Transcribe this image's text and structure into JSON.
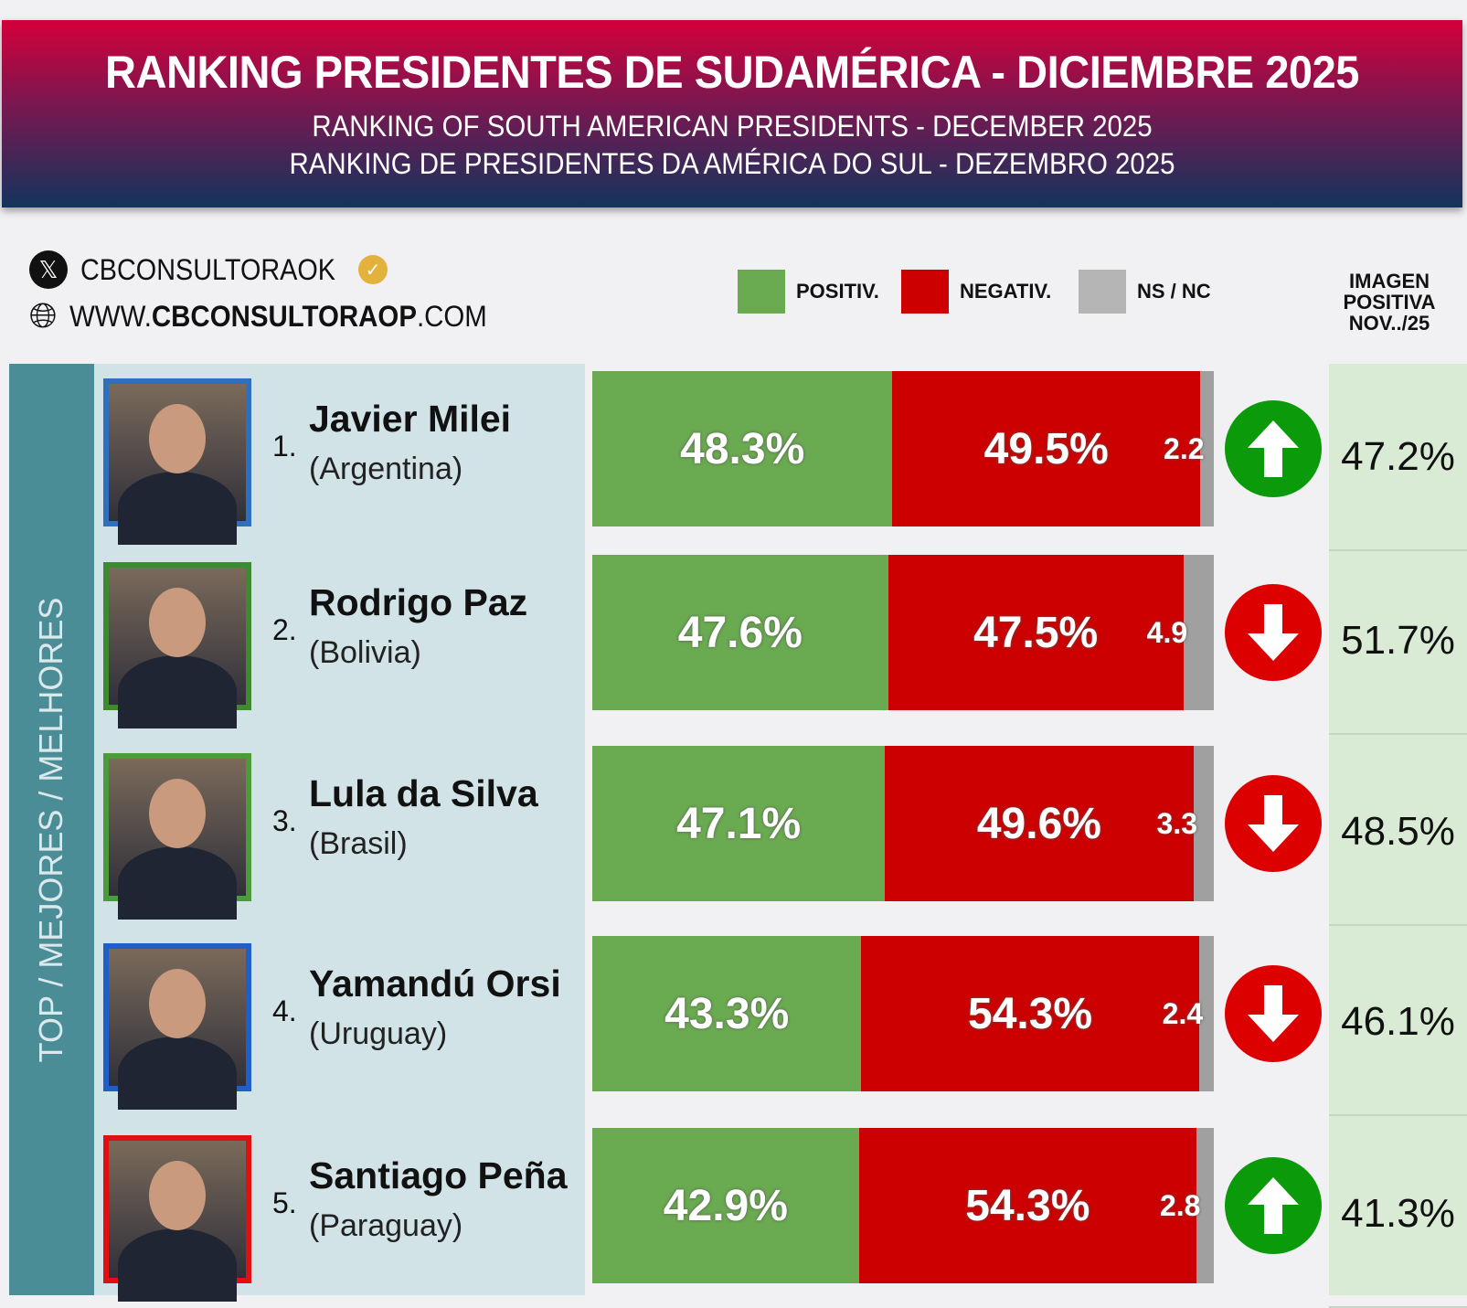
{
  "header": {
    "title": "RANKING PRESIDENTES DE SUDAMÉRICA - DICIEMBRE 2025",
    "subtitle_en": "RANKING OF SOUTH AMERICAN PRESIDENTS -   DECEMBER 2025",
    "subtitle_pt": "RANKING DE PRESIDENTES DA AMÉRICA DO SUL - DEZEMBRO 2025"
  },
  "social": {
    "handle": "CBCONSULTORAOK",
    "web_prefix": "WWW.",
    "web_bold": "CBCONSULTORAOP",
    "web_suffix": ".COM"
  },
  "legend": [
    {
      "label": "POSITIV.",
      "color": "#6aaa50"
    },
    {
      "label": "NEGATIV.",
      "color": "#cc0000"
    },
    {
      "label": "NS / NC",
      "color": "#b5b5b5"
    }
  ],
  "prev_header": "IMAGEN POSITIVA NOV../25",
  "side_label": "TOP / MEJORES / MELHORES",
  "chart_data": {
    "type": "bar",
    "stacked": true,
    "orientation": "horizontal",
    "categories": [
      "Javier Milei",
      "Rodrigo Paz",
      "Lula da Silva",
      "Yamandú Orsi",
      "Santiago Peña"
    ],
    "series": [
      {
        "name": "POSITIV.",
        "values": [
          48.3,
          47.6,
          47.1,
          43.3,
          42.9
        ]
      },
      {
        "name": "NEGATIV.",
        "values": [
          49.5,
          47.5,
          49.6,
          54.3,
          54.3
        ]
      },
      {
        "name": "NS / NC",
        "values": [
          2.2,
          4.9,
          3.3,
          2.4,
          2.8
        ]
      }
    ]
  },
  "rows": [
    {
      "rank": "1.",
      "name": "Javier Milei",
      "country": "(Argentina)",
      "pos": "48.3%",
      "neg": "49.5%",
      "ns": "2.2",
      "trend": "up",
      "prev": "47.2%",
      "frame": "#2f6fc0"
    },
    {
      "rank": "2.",
      "name": "Rodrigo Paz",
      "country": "(Bolivia)",
      "pos": "47.6%",
      "neg": "47.5%",
      "ns": "4.9",
      "trend": "down",
      "prev": "51.7%",
      "frame": "#3f8a2e"
    },
    {
      "rank": "3.",
      "name": "Lula da Silva",
      "country": "(Brasil)",
      "pos": "47.1%",
      "neg": "49.6%",
      "ns": "3.3",
      "trend": "down",
      "prev": "48.5%",
      "frame": "#4d9a3a"
    },
    {
      "rank": "4.",
      "name": "Yamandú Orsi",
      "country": "(Uruguay)",
      "pos": "43.3%",
      "neg": "54.3%",
      "ns": "2.4",
      "trend": "down",
      "prev": "46.1%",
      "frame": "#1f5fc8"
    },
    {
      "rank": "5.",
      "name": "Santiago Peña",
      "country": "(Paraguay)",
      "pos": "42.9%",
      "neg": "54.3%",
      "ns": "2.8",
      "trend": "up",
      "prev": "41.3%",
      "frame": "#e01010"
    }
  ]
}
